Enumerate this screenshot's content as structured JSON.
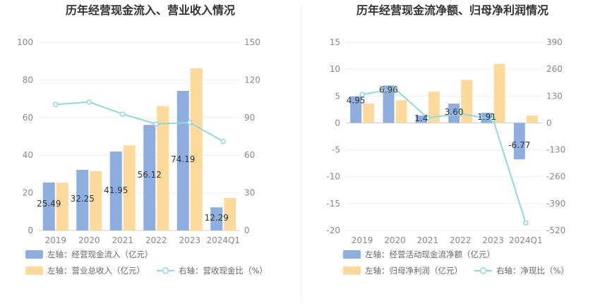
{
  "chart_data": [
    {
      "type": "bar",
      "title": "历年经营现金流入、营业收入情况",
      "categories": [
        "2019",
        "2020",
        "2021",
        "2022",
        "2023",
        "2024Q1"
      ],
      "left_axis": {
        "ylim": [
          0,
          100
        ],
        "ticks": [
          "0",
          "20",
          "40",
          "60",
          "80",
          "100"
        ]
      },
      "right_axis": {
        "ylim": [
          0,
          150
        ],
        "ticks": [
          "0",
          "30",
          "60",
          "90",
          "120",
          "150"
        ]
      },
      "grid": true,
      "legend_position": "bottom",
      "series": [
        {
          "name": "左轴：经营现金流入（亿元）",
          "kind": "bar",
          "axis": "left",
          "color": "#8eaedf",
          "values": [
            25.49,
            32.25,
            41.95,
            56.12,
            74.19,
            12.29
          ],
          "labels": [
            "25.49",
            "32.25",
            "41.95",
            "56.12",
            "74.19",
            "12.29"
          ]
        },
        {
          "name": "左轴：营业总收入（亿元）",
          "kind": "bar",
          "axis": "left",
          "color": "#fdd99b",
          "values": [
            25.4,
            31.5,
            45.2,
            66.1,
            86.2,
            17.3
          ]
        },
        {
          "name": "右轴：营收现金比（%）",
          "kind": "line",
          "axis": "right",
          "color": "#8fd8de",
          "values": [
            100.4,
            102.4,
            92.8,
            84.9,
            86.0,
            71.0
          ]
        }
      ]
    },
    {
      "type": "bar",
      "title": "历年经营现金流净额、归母净利润情况",
      "categories": [
        "2019",
        "2020",
        "2021",
        "2022",
        "2023",
        "2024Q1"
      ],
      "left_axis": {
        "ylim": [
          -20,
          15
        ],
        "ticks": [
          "-20",
          "-15",
          "-10",
          "-5",
          "0",
          "5",
          "10",
          "15"
        ]
      },
      "right_axis": {
        "ylim": [
          -520,
          390
        ],
        "ticks": [
          "-520",
          "-390",
          "-260",
          "-130",
          "0",
          "130",
          "260",
          "390"
        ]
      },
      "grid": true,
      "legend_position": "bottom",
      "series": [
        {
          "name": "左轴：经营活动现金流净额（亿元）",
          "kind": "bar",
          "axis": "left",
          "color": "#8eaedf",
          "values": [
            4.95,
            6.96,
            1.4,
            3.6,
            1.91,
            -6.77
          ],
          "labels": [
            "4.95",
            "6.96",
            "1.4",
            "3.60",
            "1.91",
            "-6.77"
          ]
        },
        {
          "name": "左轴：归母净利润（亿元）",
          "kind": "bar",
          "axis": "left",
          "color": "#fdd99b",
          "values": [
            3.6,
            4.2,
            5.8,
            8.0,
            11.0,
            1.4
          ]
        },
        {
          "name": "右轴：净现比（%）",
          "kind": "line",
          "axis": "right",
          "color": "#8fd8de",
          "values": [
            137.5,
            165.7,
            24.1,
            45.0,
            17.4,
            -483.6
          ]
        }
      ]
    }
  ]
}
